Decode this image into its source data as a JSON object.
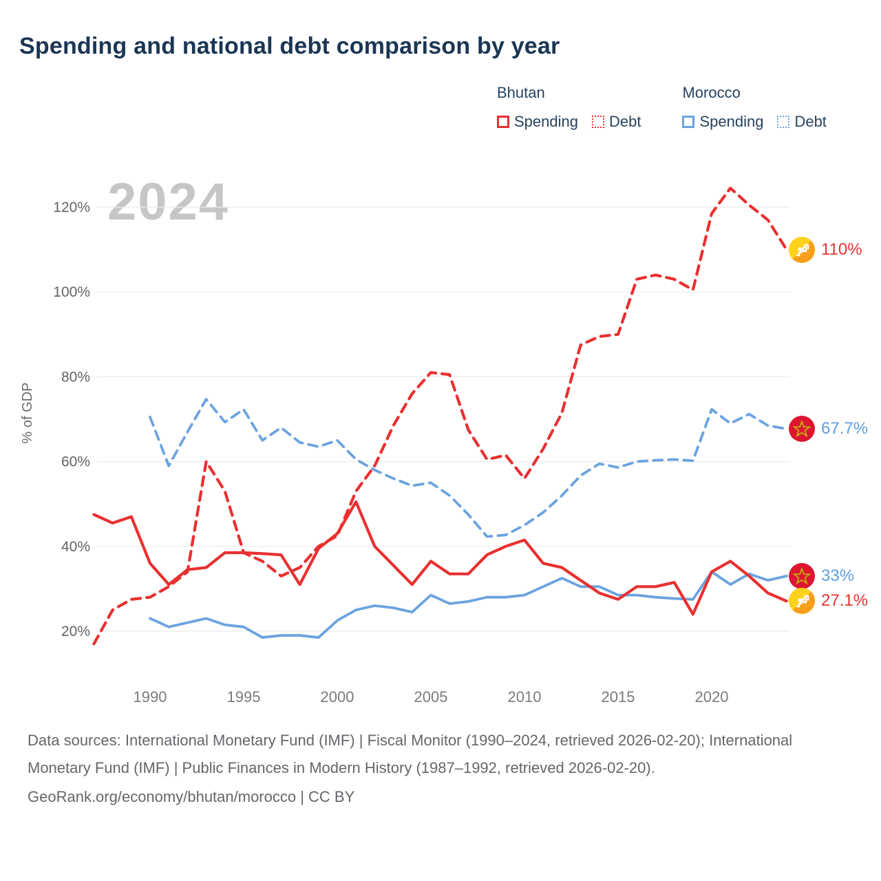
{
  "header": {
    "title": "Spending and national debt comparison by year"
  },
  "legend": {
    "groups": [
      {
        "country": "Bhutan",
        "items": [
          {
            "label": "Spending",
            "style": "solid",
            "color": "#e93030"
          },
          {
            "label": "Debt",
            "style": "dotted",
            "color": "#e93030"
          }
        ]
      },
      {
        "country": "Morocco",
        "items": [
          {
            "label": "Spending",
            "style": "solid",
            "color": "#6ba3e0"
          },
          {
            "label": "Debt",
            "style": "dotted",
            "color": "#6ba3e0"
          }
        ]
      }
    ]
  },
  "watermark": "2024",
  "footer": {
    "sources": "Data sources: International Monetary Fund (IMF) | Fiscal Monitor (1990–2024, retrieved 2026-02-20); International Monetary Fund (IMF) | Public Finances in Modern History (1987–1992, retrieved 2026-02-20).",
    "attribution": "GeoRank.org/economy/bhutan/morocco | CC BY"
  },
  "chart_data": {
    "type": "line",
    "title": "Spending and national debt comparison by year",
    "xlabel": "",
    "ylabel": "% of GDP",
    "x_ticks": [
      1990,
      1995,
      2000,
      2005,
      2010,
      2015,
      2020
    ],
    "y_ticks": [
      20,
      40,
      60,
      80,
      100,
      120
    ],
    "y_tick_suffix": "%",
    "xlim": [
      1986.5,
      2025
    ],
    "ylim": [
      13,
      128
    ],
    "grid": "horizontal",
    "legend_position": "top-right",
    "series": [
      {
        "name": "Bhutan Spending",
        "country": "Bhutan",
        "metric": "Spending",
        "color": "#e93030",
        "dash": "solid",
        "width": 4.2,
        "flag": "bhutan",
        "start_year": 1987,
        "end_label": "27.1%",
        "values": [
          47.5,
          45.5,
          47,
          36,
          31,
          34.5,
          35,
          38.5,
          38.5,
          38.3,
          38,
          31,
          39.5,
          43,
          50.5,
          40,
          35.5,
          31,
          36.5,
          33.5,
          33.5,
          38,
          40,
          41.5,
          36,
          35,
          32,
          29,
          27.5,
          30.5,
          30.5,
          31.5,
          24,
          34,
          36.5,
          33,
          29,
          27.1
        ]
      },
      {
        "name": "Bhutan Debt",
        "country": "Bhutan",
        "metric": "Debt",
        "color": "#e93030",
        "dash": "dashed",
        "width": 4.2,
        "flag": "bhutan",
        "start_year": 1987,
        "end_label": "110%",
        "values": [
          17,
          25,
          27.5,
          28,
          30.5,
          34,
          60,
          53,
          38.5,
          36.5,
          33,
          35,
          40,
          42.5,
          53,
          59,
          68.5,
          76,
          81,
          80.5,
          67.5,
          60.5,
          61.5,
          56,
          63,
          71.5,
          87.5,
          89.5,
          90,
          103,
          104,
          103,
          100.5,
          118.5,
          124.5,
          120.5,
          117,
          110
        ]
      },
      {
        "name": "Morocco Spending",
        "country": "Morocco",
        "metric": "Spending",
        "color": "#6ba3e0",
        "dash": "solid",
        "width": 3.8,
        "flag": "morocco",
        "start_year": 1990,
        "end_label": "33%",
        "values": [
          23,
          21,
          22,
          23,
          21.5,
          21,
          18.5,
          19,
          19,
          18.5,
          22.5,
          25,
          26,
          25.5,
          24.5,
          28.5,
          26.5,
          27,
          28,
          28,
          28.5,
          30.5,
          32.5,
          30.5,
          30.5,
          28.5,
          28.5,
          28,
          27.7,
          27.5,
          34,
          31,
          33.5,
          32,
          33
        ]
      },
      {
        "name": "Morocco Debt",
        "country": "Morocco",
        "metric": "Debt",
        "color": "#6ba3e0",
        "dash": "dashed",
        "width": 3.8,
        "flag": "morocco",
        "start_year": 1990,
        "end_label": "67.7%",
        "values": [
          70.5,
          59,
          67,
          74.7,
          69.3,
          72.3,
          65,
          68,
          64.5,
          63.5,
          65,
          60.5,
          58,
          56,
          54.3,
          55,
          52,
          47.5,
          42.3,
          42.7,
          45,
          48,
          52,
          56.7,
          59.5,
          58.6,
          60,
          60.3,
          60.5,
          60.2,
          72.3,
          69,
          71.2,
          68.5,
          67.7
        ]
      }
    ]
  }
}
